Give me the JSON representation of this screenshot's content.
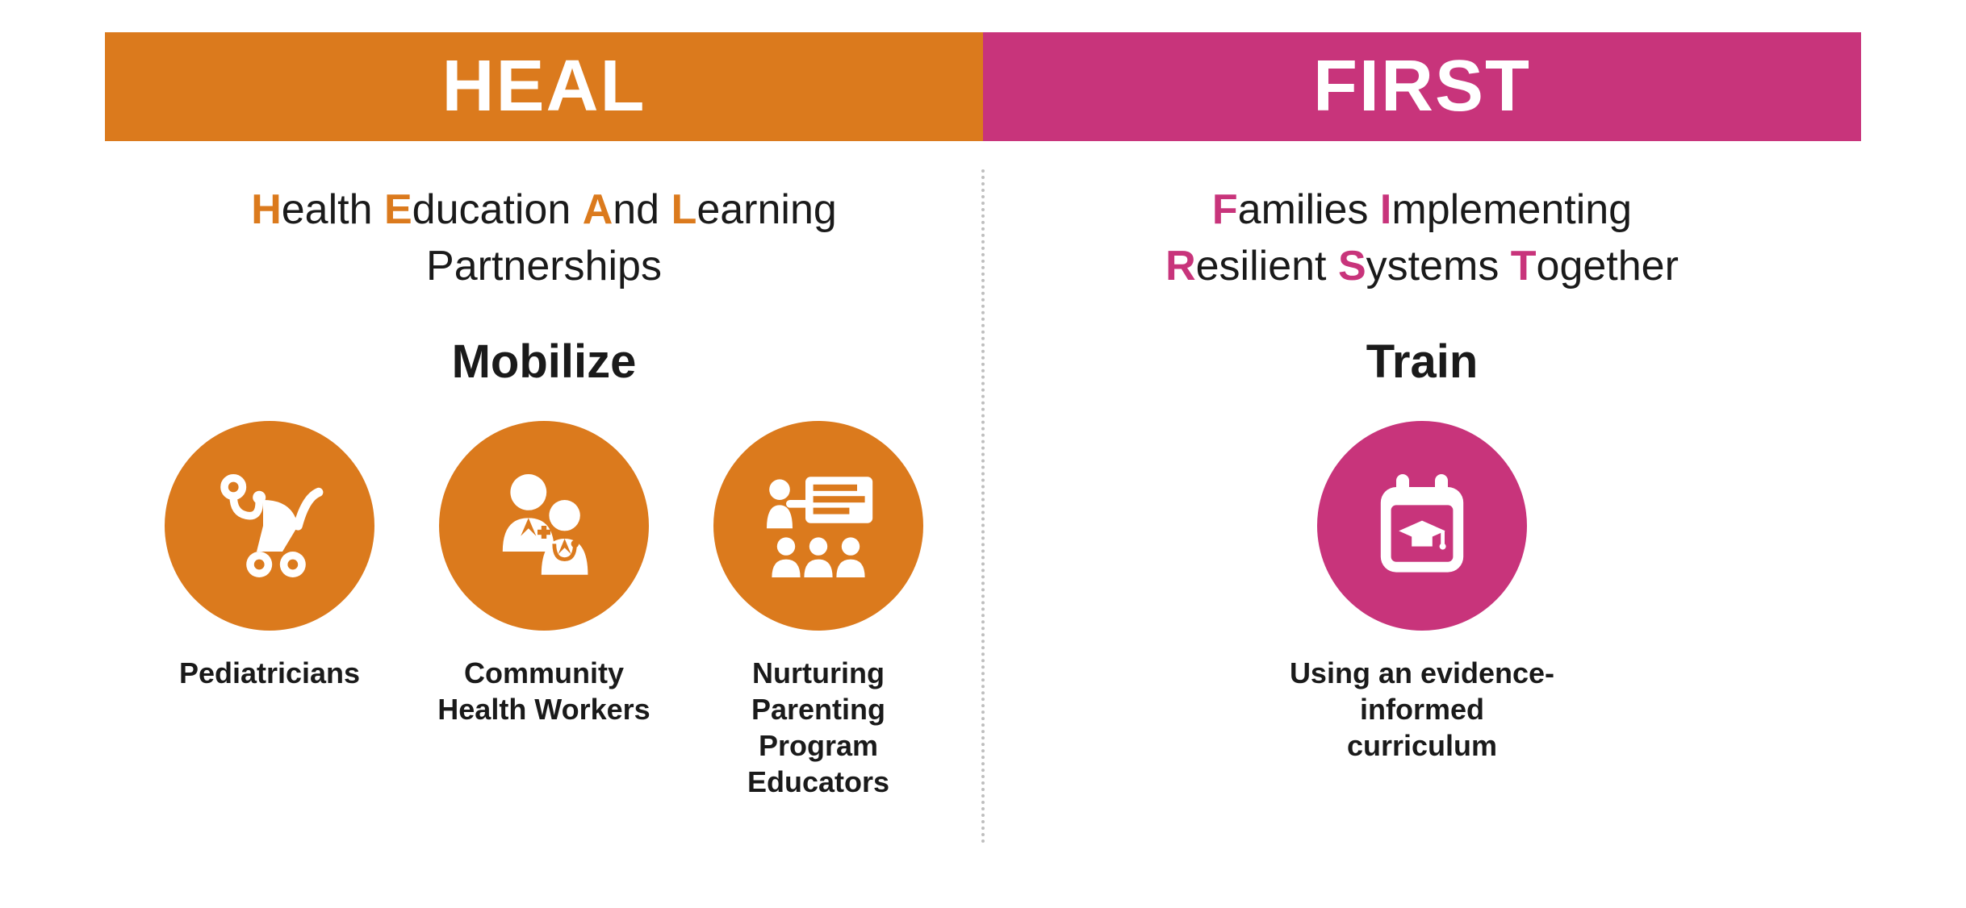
{
  "type": "infographic",
  "left": {
    "header": "HEAL",
    "header_bg": "#db7a1d",
    "accent_color": "#db7a1d",
    "acronym_words": [
      {
        "hl": "H",
        "rest": "ealth "
      },
      {
        "hl": "E",
        "rest": "ducation "
      },
      {
        "hl": "A",
        "rest": "nd "
      },
      {
        "hl": "L",
        "rest": "earning"
      }
    ],
    "acronym_line2": "Partnerships",
    "section_title": "Mobilize",
    "icons": [
      {
        "name": "stethoscope-stroller-icon",
        "label": "Pediatricians"
      },
      {
        "name": "health-workers-icon",
        "label": "Community\nHealth Workers"
      },
      {
        "name": "educator-presentation-icon",
        "label": "Nurturing Parenting\nProgram Educators"
      }
    ]
  },
  "right": {
    "header": "FIRST",
    "header_bg": "#c8347b",
    "accent_color": "#c8347b",
    "acronym_words_l1": [
      {
        "hl": "F",
        "rest": "amilies "
      },
      {
        "hl": "I",
        "rest": "mplementing"
      }
    ],
    "acronym_words_l2": [
      {
        "hl": "R",
        "rest": "esilient "
      },
      {
        "hl": "S",
        "rest": "ystems "
      },
      {
        "hl": "T",
        "rest": "ogether"
      }
    ],
    "section_title": "Train",
    "icons": [
      {
        "name": "curriculum-calendar-icon",
        "label": "Using an evidence-informed\ncurriculum"
      }
    ]
  },
  "typography": {
    "header_fontsize": 90,
    "acronym_fontsize": 52,
    "section_title_fontsize": 58,
    "label_fontsize": 36,
    "text_color": "#1a1a1a"
  },
  "layout": {
    "icon_circle_diameter": 260,
    "divider_color": "#bfbfbf",
    "background": "#ffffff"
  }
}
